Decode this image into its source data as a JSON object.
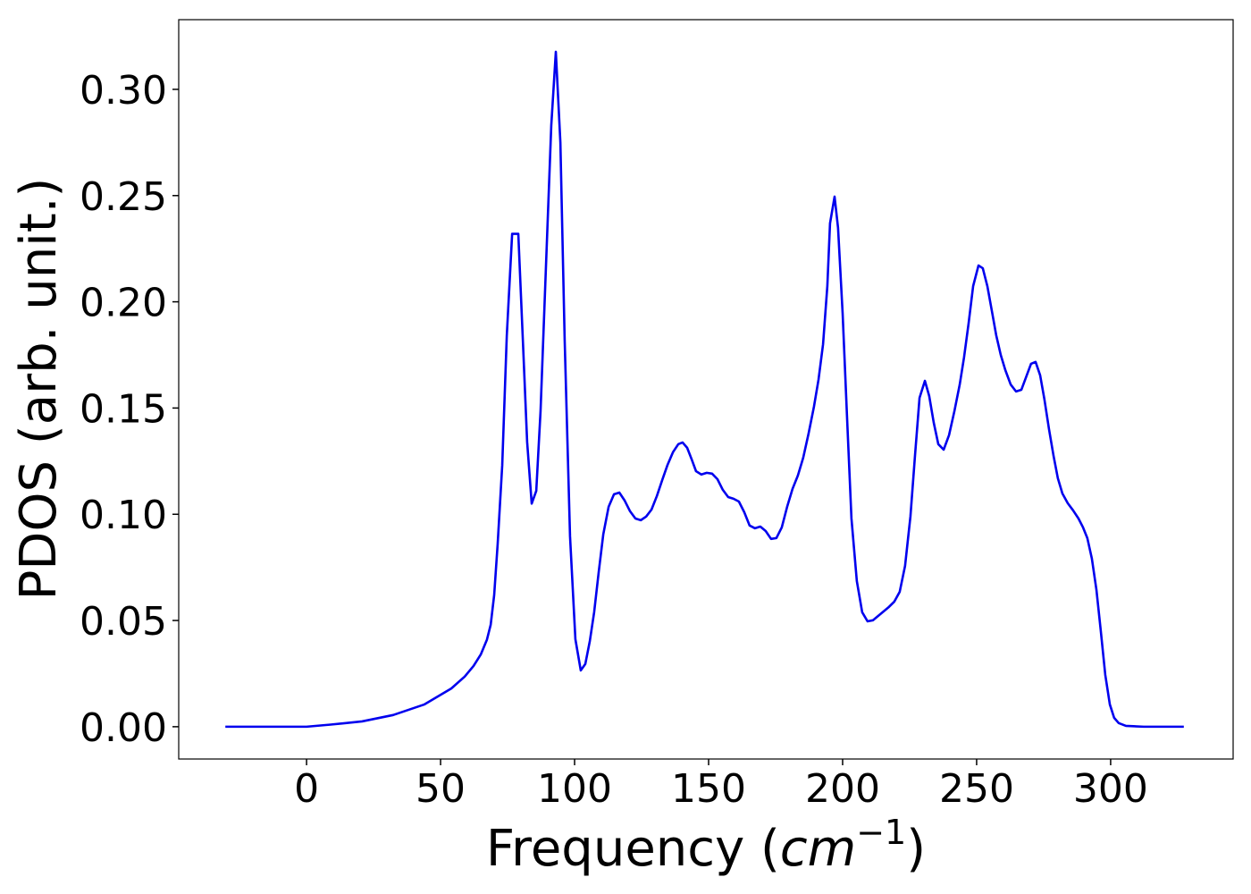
{
  "chart_data": {
    "type": "line",
    "xlabel": [
      "Frequency (",
      "cm",
      "−1",
      ")"
    ],
    "ylabel": "PDOS (arb. unit.)",
    "color": "#0000ee",
    "x": [
      -30.3,
      0,
      9,
      20.7,
      32.3,
      44,
      54,
      59,
      62.3,
      65,
      67.3,
      68.7,
      70,
      71.3,
      73,
      74.7,
      76.7,
      79,
      80.7,
      82.3,
      84,
      85.7,
      87.3,
      89.3,
      91.3,
      93,
      94.7,
      96.3,
      98.3,
      100.3,
      102.3,
      104,
      105.7,
      107.3,
      109,
      110.7,
      112.7,
      114.7,
      116.7,
      118.7,
      120.7,
      122.7,
      124.7,
      126.7,
      128.7,
      130.7,
      132.7,
      134.7,
      136.7,
      138.7,
      140.3,
      142,
      143.7,
      145.3,
      147.3,
      149.3,
      151.3,
      153.3,
      155.3,
      157.3,
      159.3,
      161.3,
      163.3,
      165.3,
      167.3,
      169.3,
      171.3,
      173.3,
      175.3,
      177.3,
      179.3,
      181.3,
      183.3,
      185.3,
      187.3,
      189.3,
      191,
      192.7,
      194.3,
      195.3,
      197,
      198.3,
      200,
      201.7,
      203.3,
      205.3,
      207.3,
      209.3,
      211.3,
      213.3,
      215.3,
      217.3,
      219.3,
      221.3,
      223.3,
      225.3,
      227,
      228.7,
      230.7,
      232.3,
      234,
      235.7,
      237.7,
      239.7,
      241.7,
      243.7,
      245.3,
      247,
      248.7,
      250.7,
      252.3,
      254,
      255.7,
      257.3,
      259,
      260.7,
      262.7,
      264.7,
      266.7,
      268.7,
      270.3,
      272,
      273.7,
      275.3,
      277,
      278.7,
      280.3,
      282,
      284,
      286,
      288,
      289.7,
      291.3,
      293,
      294.7,
      296.3,
      298,
      299.7,
      301.3,
      303,
      305.7,
      312.3,
      327.3
    ],
    "values": [
      0,
      0,
      0.001,
      0.0025,
      0.0055,
      0.0105,
      0.018,
      0.0236,
      0.0286,
      0.034,
      0.041,
      0.048,
      0.062,
      0.086,
      0.123,
      0.184,
      0.232,
      0.232,
      0.182,
      0.134,
      0.105,
      0.111,
      0.1485,
      0.216,
      0.283,
      0.3177,
      0.275,
      0.182,
      0.0896,
      0.0412,
      0.0265,
      0.0295,
      0.0404,
      0.0539,
      0.0728,
      0.0905,
      0.1035,
      0.1094,
      0.1102,
      0.1064,
      0.1014,
      0.098,
      0.0972,
      0.0989,
      0.1022,
      0.1086,
      0.1161,
      0.1233,
      0.1292,
      0.133,
      0.1338,
      0.1313,
      0.1258,
      0.1203,
      0.1187,
      0.1195,
      0.1191,
      0.1165,
      0.1115,
      0.1081,
      0.1073,
      0.106,
      0.101,
      0.0947,
      0.0934,
      0.0942,
      0.0921,
      0.0884,
      0.0888,
      0.0938,
      0.1035,
      0.1119,
      0.1182,
      0.1266,
      0.138,
      0.1506,
      0.1633,
      0.18,
      0.2074,
      0.2369,
      0.2495,
      0.2348,
      0.1948,
      0.1443,
      0.098,
      0.0686,
      0.0539,
      0.0496,
      0.0501,
      0.0522,
      0.0543,
      0.0564,
      0.0589,
      0.0635,
      0.0757,
      0.0989,
      0.1275,
      0.1548,
      0.1628,
      0.1557,
      0.1431,
      0.133,
      0.1304,
      0.1372,
      0.1485,
      0.1611,
      0.1738,
      0.1898,
      0.2074,
      0.2171,
      0.2158,
      0.2074,
      0.1956,
      0.1843,
      0.175,
      0.1679,
      0.1611,
      0.1578,
      0.1586,
      0.1654,
      0.1708,
      0.1717,
      0.1654,
      0.154,
      0.1401,
      0.1275,
      0.117,
      0.1098,
      0.1052,
      0.1018,
      0.098,
      0.0938,
      0.0888,
      0.0791,
      0.0644,
      0.0454,
      0.0244,
      0.0105,
      0.0042,
      0.0017,
      0.0004,
      0,
      0
    ],
    "xlim": [
      -47.7,
      345.7
    ],
    "ylim": [
      -0.0152,
      0.3328
    ],
    "xticks": [
      0,
      50,
      100,
      150,
      200,
      250,
      300
    ],
    "yticks": [
      {
        "value": 0,
        "label": "0.00"
      },
      0.05,
      {
        "value": 0.1,
        "label": "0.10"
      },
      0.15,
      {
        "value": 0.2,
        "label": "0.20"
      },
      0.25,
      {
        "value": 0.3,
        "label": "0.30"
      }
    ],
    "grid": false
  }
}
